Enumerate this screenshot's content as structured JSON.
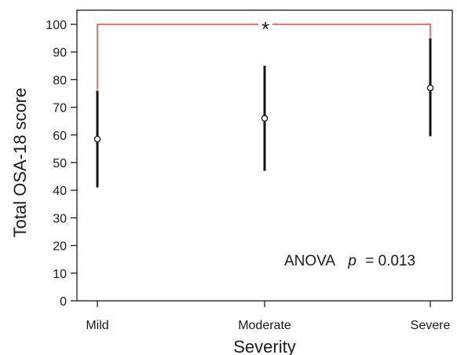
{
  "chart_data": {
    "type": "scatter",
    "xlabel": "Severity",
    "ylabel": "Total OSA-18 score",
    "categories": [
      "Mild",
      "Moderate",
      "Severe"
    ],
    "ylim": [
      0,
      100
    ],
    "yticks": [
      0,
      10,
      20,
      30,
      40,
      50,
      60,
      70,
      80,
      90,
      100
    ],
    "series": [
      {
        "means": [
          58.5,
          66,
          77
        ],
        "lower": [
          41,
          47,
          59.5
        ],
        "upper": [
          76,
          85,
          95
        ]
      }
    ],
    "significance_bracket": {
      "from": "Mild",
      "to": "Severe",
      "y": 100,
      "label": "*",
      "color": "#e8473c"
    },
    "annotation": {
      "prefix": "ANOVA",
      "italic": "p",
      "suffix": "= 0.013"
    },
    "grid": false,
    "legend": "none"
  }
}
